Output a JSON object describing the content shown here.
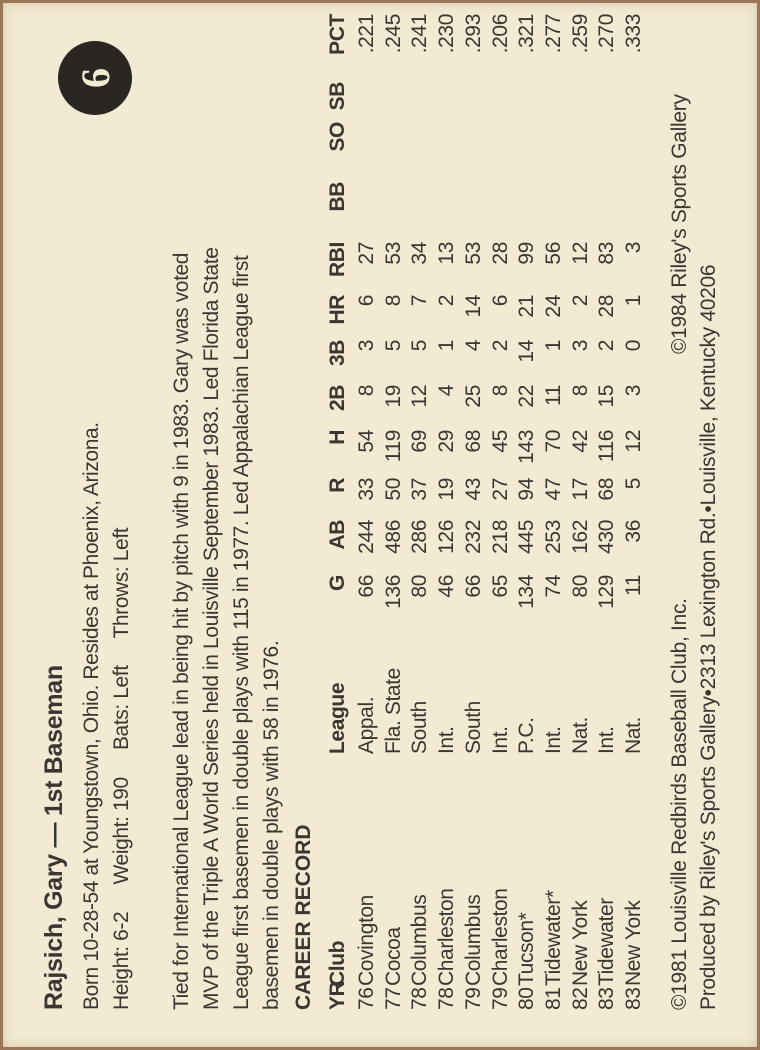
{
  "card": {
    "title": "Rajsich, Gary — 1st Baseman",
    "number": "6",
    "bio_lines": [
      "Born 10-28-54 at Youngstown, Ohio. Resides at Phoenix, Arizona.",
      "Height: 6-2     Weight: 190     Bats: Left     Throws: Left"
    ],
    "note_lines": [
      "Tied for International League lead in being hit by pitch with 9 in 1983. Gary was voted",
      "MVP of the Triple A World Series held in Louisville September 1983. Led Florida State",
      "League first basemen in double plays with 115 in 1977. Led Appalachian League first",
      "basemen in double plays with 58 in 1976."
    ],
    "career_heading": "CAREER RECORD",
    "columns": [
      "YR",
      "Club",
      "League",
      "G",
      "AB",
      "R",
      "H",
      "2B",
      "3B",
      "HR",
      "RBI",
      "BB",
      "SO",
      "SB",
      "PCT"
    ],
    "rows": [
      [
        "76",
        "Covington",
        "Appal.",
        "66",
        "244",
        "33",
        "54",
        "8",
        "3",
        "6",
        "27",
        "",
        "",
        "",
        ".221"
      ],
      [
        "77",
        "Cocoa",
        "Fla. State",
        "136",
        "486",
        "50",
        "119",
        "19",
        "5",
        "8",
        "53",
        "",
        "",
        "",
        ".245"
      ],
      [
        "78",
        "Columbus",
        "South",
        "80",
        "286",
        "37",
        "69",
        "12",
        "5",
        "7",
        "34",
        "",
        "",
        "",
        ".241"
      ],
      [
        "78",
        "Charleston",
        "Int.",
        "46",
        "126",
        "19",
        "29",
        "4",
        "1",
        "2",
        "13",
        "",
        "",
        "",
        ".230"
      ],
      [
        "79",
        "Columbus",
        "South",
        "66",
        "232",
        "43",
        "68",
        "25",
        "4",
        "14",
        "53",
        "",
        "",
        "",
        ".293"
      ],
      [
        "79",
        "Charleston",
        "Int.",
        "65",
        "218",
        "27",
        "45",
        "8",
        "2",
        "6",
        "28",
        "",
        "",
        "",
        ".206"
      ],
      [
        "80",
        "Tucson*",
        "P.C.",
        "134",
        "445",
        "94",
        "143",
        "22",
        "14",
        "21",
        "99",
        "",
        "",
        "",
        ".321"
      ],
      [
        "81",
        "Tidewater*",
        "Int.",
        "74",
        "253",
        "47",
        "70",
        "11",
        "1",
        "24",
        "56",
        "",
        "",
        "",
        ".277"
      ],
      [
        "82",
        "New York",
        "Nat.",
        "80",
        "162",
        "17",
        "42",
        "8",
        "3",
        "2",
        "12",
        "",
        "",
        "",
        ".259"
      ],
      [
        "83",
        "Tidewater",
        "Int.",
        "129",
        "430",
        "68",
        "116",
        "15",
        "2",
        "28",
        "83",
        "",
        "",
        "",
        ".270"
      ],
      [
        "83",
        "New York",
        "Nat.",
        "11",
        "36",
        "5",
        "12",
        "3",
        "0",
        "1",
        "3",
        "",
        "",
        "",
        ".333"
      ]
    ],
    "footer": {
      "copyright_club": "©1981 Louisville Redbirds Baseball Club, Inc.",
      "copyright_gallery": "©1984 Riley's Sports Gallery",
      "produced_by": "Produced by Riley's Sports Gallery•2313 Lexington Rd.•Louisville, Kentucky 40206"
    }
  }
}
